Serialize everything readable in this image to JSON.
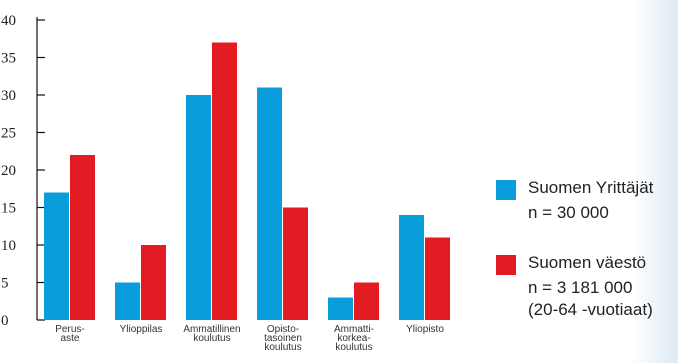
{
  "chart_data": {
    "type": "bar",
    "categories": [
      [
        "Perus-",
        "aste"
      ],
      [
        "Ylioppilas"
      ],
      [
        "Ammatillinen",
        "koulutus"
      ],
      [
        "Opisto-",
        "tasoinen",
        "koulutus"
      ],
      [
        "Ammatti-",
        "korkea-",
        "koulutus"
      ],
      [
        "Yliopisto"
      ]
    ],
    "series": [
      {
        "name": "Suomen Yrittäjät",
        "note": [
          "n = 30 000"
        ],
        "color": "#0a9ddc",
        "values": [
          17,
          5,
          30,
          31,
          3,
          14
        ]
      },
      {
        "name": "Suomen väestö",
        "note": [
          "n = 3 181 000",
          "(20-64 -vuotiaat)"
        ],
        "color": "#e31b23",
        "values": [
          22,
          10,
          37,
          15,
          5,
          11
        ]
      }
    ],
    "ylim": [
      0,
      40
    ],
    "yticks": [
      0,
      5,
      10,
      15,
      20,
      25,
      30,
      35,
      40
    ],
    "legend": "right",
    "grid": false
  }
}
